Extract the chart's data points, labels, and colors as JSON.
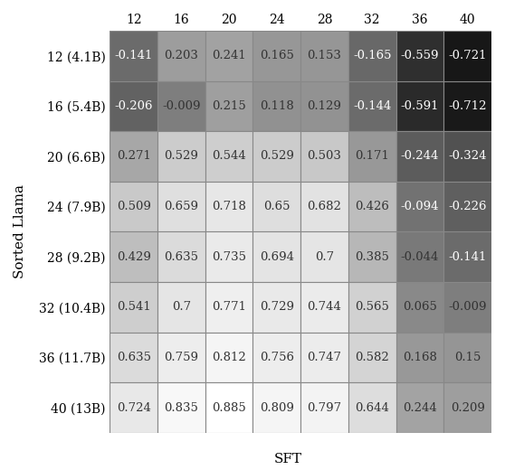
{
  "col_labels": [
    "12",
    "16",
    "20",
    "24",
    "28",
    "32",
    "36",
    "40"
  ],
  "row_labels": [
    "12 (4.1B)",
    "16 (5.4B)",
    "20 (6.6B)",
    "24 (7.9B)",
    "28 (9.2B)",
    "32 (10.4B)",
    "36 (11.7B)",
    "40 (13B)"
  ],
  "values": [
    [
      -0.141,
      0.203,
      0.241,
      0.165,
      0.153,
      -0.165,
      -0.559,
      -0.721
    ],
    [
      -0.206,
      -0.009,
      0.215,
      0.118,
      0.129,
      -0.144,
      -0.591,
      -0.712
    ],
    [
      0.271,
      0.529,
      0.544,
      0.529,
      0.503,
      0.171,
      -0.244,
      -0.324
    ],
    [
      0.509,
      0.659,
      0.718,
      0.65,
      0.682,
      0.426,
      -0.094,
      -0.226
    ],
    [
      0.429,
      0.635,
      0.735,
      0.694,
      0.7,
      0.385,
      -0.044,
      -0.141
    ],
    [
      0.541,
      0.7,
      0.771,
      0.729,
      0.744,
      0.565,
      0.065,
      -0.009
    ],
    [
      0.635,
      0.759,
      0.812,
      0.756,
      0.747,
      0.582,
      0.168,
      0.15
    ],
    [
      0.724,
      0.835,
      0.885,
      0.809,
      0.797,
      0.644,
      0.244,
      0.209
    ]
  ],
  "xlabel": "SFT",
  "ylabel": "Sorted Llama",
  "vmin": -0.885,
  "vmax": 0.885,
  "cell_text_fontsize": 9.5,
  "label_fontsize": 11,
  "tick_fontsize": 10,
  "grid_color": "#888888",
  "background_color": "#ffffff",
  "figsize": [
    5.58,
    5.2
  ],
  "dpi": 100
}
